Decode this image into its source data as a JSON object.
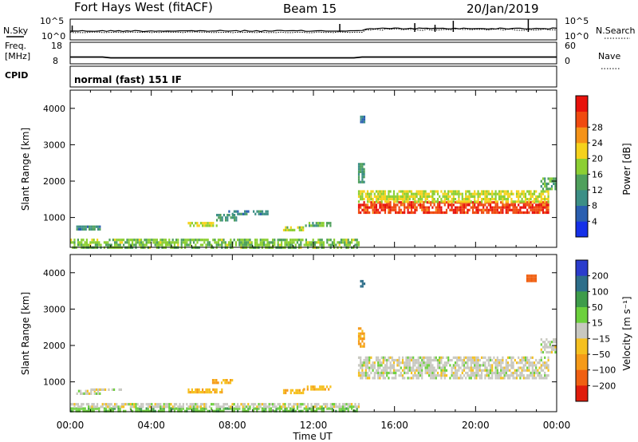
{
  "header": {
    "station": "Fort Hays West (fitACF)",
    "beam": "Beam 15",
    "date": "20/Jan/2019"
  },
  "strip_labels": {
    "nsky": "N.Sky",
    "nsky_ticks": [
      "10^5",
      "10^0"
    ],
    "nsearch": "N.Search",
    "nsearch_ticks": [
      "10^5",
      "10^0"
    ],
    "freq_line1": "Freq.",
    "freq_line2": "[MHz]",
    "freq_ticks": [
      "18",
      "8"
    ],
    "nave": "Nave",
    "nave_ticks": [
      "60",
      "0"
    ],
    "cpid": "CPID",
    "cpid_text": "normal (fast) 151 IF"
  },
  "colors": {
    "power": [
      "#1530e8",
      "#2a5fb0",
      "#3c8f86",
      "#4fa05c",
      "#8ccf33",
      "#f5d21c",
      "#f59318",
      "#f04a10",
      "#e8120c"
    ],
    "velocity": [
      "#2a3ccc",
      "#2d6e8a",
      "#3e9c4a",
      "#6cd03c",
      "#c8c8c0",
      "#f5c020",
      "#f59a18",
      "#f06012",
      "#e01c0c"
    ]
  },
  "chart_data": [
    {
      "type": "heatmap",
      "title": "",
      "xlabel": "Time UT",
      "ylabel": "Slant Range [km]",
      "x_ticks": [
        "00:00",
        "04:00",
        "08:00",
        "12:00",
        "16:00",
        "20:00",
        "00:00"
      ],
      "y_ticks": [
        "1000",
        "2000",
        "3000",
        "4000"
      ],
      "x_range_hours": [
        0,
        24
      ],
      "ylim": [
        180,
        4500
      ],
      "colorbar": {
        "label": "Power [dB]",
        "ticks": [
          "4",
          "8",
          "12",
          "16",
          "20",
          "24",
          "28"
        ],
        "range": [
          0,
          30
        ]
      },
      "regions": [
        {
          "t0": 0,
          "t1": 14.2,
          "r0": 200,
          "r1": 420,
          "value": 14
        },
        {
          "t0": 0.3,
          "t1": 1.5,
          "r0": 700,
          "r1": 780,
          "value": 9
        },
        {
          "t0": 5.8,
          "t1": 7.2,
          "r0": 780,
          "r1": 880,
          "value": 16
        },
        {
          "t0": 7.2,
          "t1": 8.2,
          "r0": 950,
          "r1": 1100,
          "value": 10
        },
        {
          "t0": 7.8,
          "t1": 9.8,
          "r0": 1100,
          "r1": 1200,
          "value": 8
        },
        {
          "t0": 10.5,
          "t1": 11.5,
          "r0": 680,
          "r1": 760,
          "value": 16
        },
        {
          "t0": 11.5,
          "t1": 12.8,
          "r0": 780,
          "r1": 880,
          "value": 12
        },
        {
          "t0": 14.2,
          "t1": 23.6,
          "r0": 1150,
          "r1": 1450,
          "value": 26
        },
        {
          "t0": 14.2,
          "t1": 23.6,
          "r0": 1450,
          "r1": 1750,
          "value": 17
        },
        {
          "t0": 14.2,
          "t1": 14.5,
          "r0": 2000,
          "r1": 2500,
          "value": 10
        },
        {
          "t0": 14.3,
          "t1": 14.5,
          "r0": 3650,
          "r1": 3800,
          "value": 6
        },
        {
          "t0": 23.2,
          "t1": 23.9,
          "r0": 1800,
          "r1": 2100,
          "value": 12
        }
      ]
    },
    {
      "type": "heatmap",
      "title": "",
      "xlabel": "Time UT",
      "ylabel": "Slant Range [km]",
      "x_ticks": [
        "00:00",
        "04:00",
        "08:00",
        "12:00",
        "16:00",
        "20:00",
        "00:00"
      ],
      "y_ticks": [
        "1000",
        "2000",
        "3000",
        "4000"
      ],
      "x_range_hours": [
        0,
        24
      ],
      "ylim": [
        180,
        4500
      ],
      "colorbar": {
        "label": "Velocity [m s⁻¹]",
        "ticks": [
          "200",
          "100",
          "50",
          "15",
          "−15",
          "−50",
          "−100",
          "−200"
        ],
        "range": [
          -250,
          250
        ]
      },
      "regions": [
        {
          "t0": 0,
          "t1": 14.2,
          "r0": 200,
          "r1": 300,
          "value": 40
        },
        {
          "t0": 0,
          "t1": 14.2,
          "r0": 300,
          "r1": 420,
          "value": 0
        },
        {
          "t0": 0.3,
          "t1": 1.5,
          "r0": 700,
          "r1": 780,
          "value": 0
        },
        {
          "t0": 1.0,
          "t1": 2.5,
          "r0": 760,
          "r1": 820,
          "value": 0
        },
        {
          "t0": 5.8,
          "t1": 7.5,
          "r0": 700,
          "r1": 820,
          "value": -40
        },
        {
          "t0": 7.0,
          "t1": 8.0,
          "r0": 950,
          "r1": 1080,
          "value": -60
        },
        {
          "t0": 10.5,
          "t1": 11.5,
          "r0": 700,
          "r1": 800,
          "value": -40
        },
        {
          "t0": 11.5,
          "t1": 12.8,
          "r0": 800,
          "r1": 900,
          "value": -40
        },
        {
          "t0": 14.2,
          "t1": 23.6,
          "r0": 1100,
          "r1": 1700,
          "value": 0
        },
        {
          "t0": 14.2,
          "t1": 14.5,
          "r0": 2000,
          "r1": 2500,
          "value": -60
        },
        {
          "t0": 14.3,
          "t1": 14.5,
          "r0": 3650,
          "r1": 3800,
          "value": 180
        },
        {
          "t0": 22.5,
          "t1": 23.0,
          "r0": 3800,
          "r1": 3950,
          "value": -150
        },
        {
          "t0": 23.2,
          "t1": 23.9,
          "r0": 1800,
          "r1": 2200,
          "value": 0
        }
      ]
    }
  ]
}
